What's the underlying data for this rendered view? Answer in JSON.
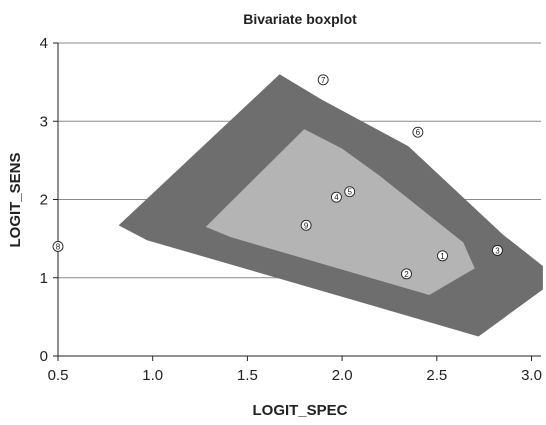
{
  "chart_data": {
    "type": "scatter",
    "title": "Bivariate boxplot",
    "xlabel": "LOGIT_SPEC",
    "ylabel": "LOGIT_SENS",
    "xlim": [
      0.5,
      3.05
    ],
    "ylim": [
      0,
      4
    ],
    "x_ticks": [
      "0.5",
      "1.0",
      "1.5",
      "2.0",
      "2.5",
      "3.0"
    ],
    "y_ticks": [
      "0",
      "1",
      "2",
      "3",
      "4"
    ],
    "grid": "horizontal",
    "fence_color": "#6e6e6e",
    "hinge_color": "#b4b4b4",
    "point_color": "#ffffff",
    "fence": [
      [
        0.82,
        1.67
      ],
      [
        0.97,
        1.48
      ],
      [
        2.72,
        0.25
      ],
      [
        3.06,
        0.85
      ],
      [
        3.06,
        1.15
      ],
      [
        2.85,
        1.55
      ],
      [
        2.35,
        2.68
      ],
      [
        1.89,
        3.28
      ],
      [
        1.67,
        3.6
      ]
    ],
    "hinge": [
      [
        1.28,
        1.65
      ],
      [
        1.41,
        1.52
      ],
      [
        2.46,
        0.78
      ],
      [
        2.7,
        1.12
      ],
      [
        2.64,
        1.45
      ],
      [
        2.2,
        2.3
      ],
      [
        2.0,
        2.65
      ],
      [
        1.8,
        2.9
      ]
    ],
    "points": [
      {
        "label": "1",
        "x": 2.53,
        "y": 1.28
      },
      {
        "label": "2",
        "x": 2.34,
        "y": 1.05
      },
      {
        "label": "3",
        "x": 2.82,
        "y": 1.35
      },
      {
        "label": "4",
        "x": 1.97,
        "y": 2.03
      },
      {
        "label": "5",
        "x": 2.04,
        "y": 2.1
      },
      {
        "label": "6",
        "x": 2.4,
        "y": 2.86
      },
      {
        "label": "7",
        "x": 1.9,
        "y": 3.53
      },
      {
        "label": "8",
        "x": 0.5,
        "y": 1.4
      },
      {
        "label": "9",
        "x": 1.81,
        "y": 1.67
      }
    ]
  }
}
